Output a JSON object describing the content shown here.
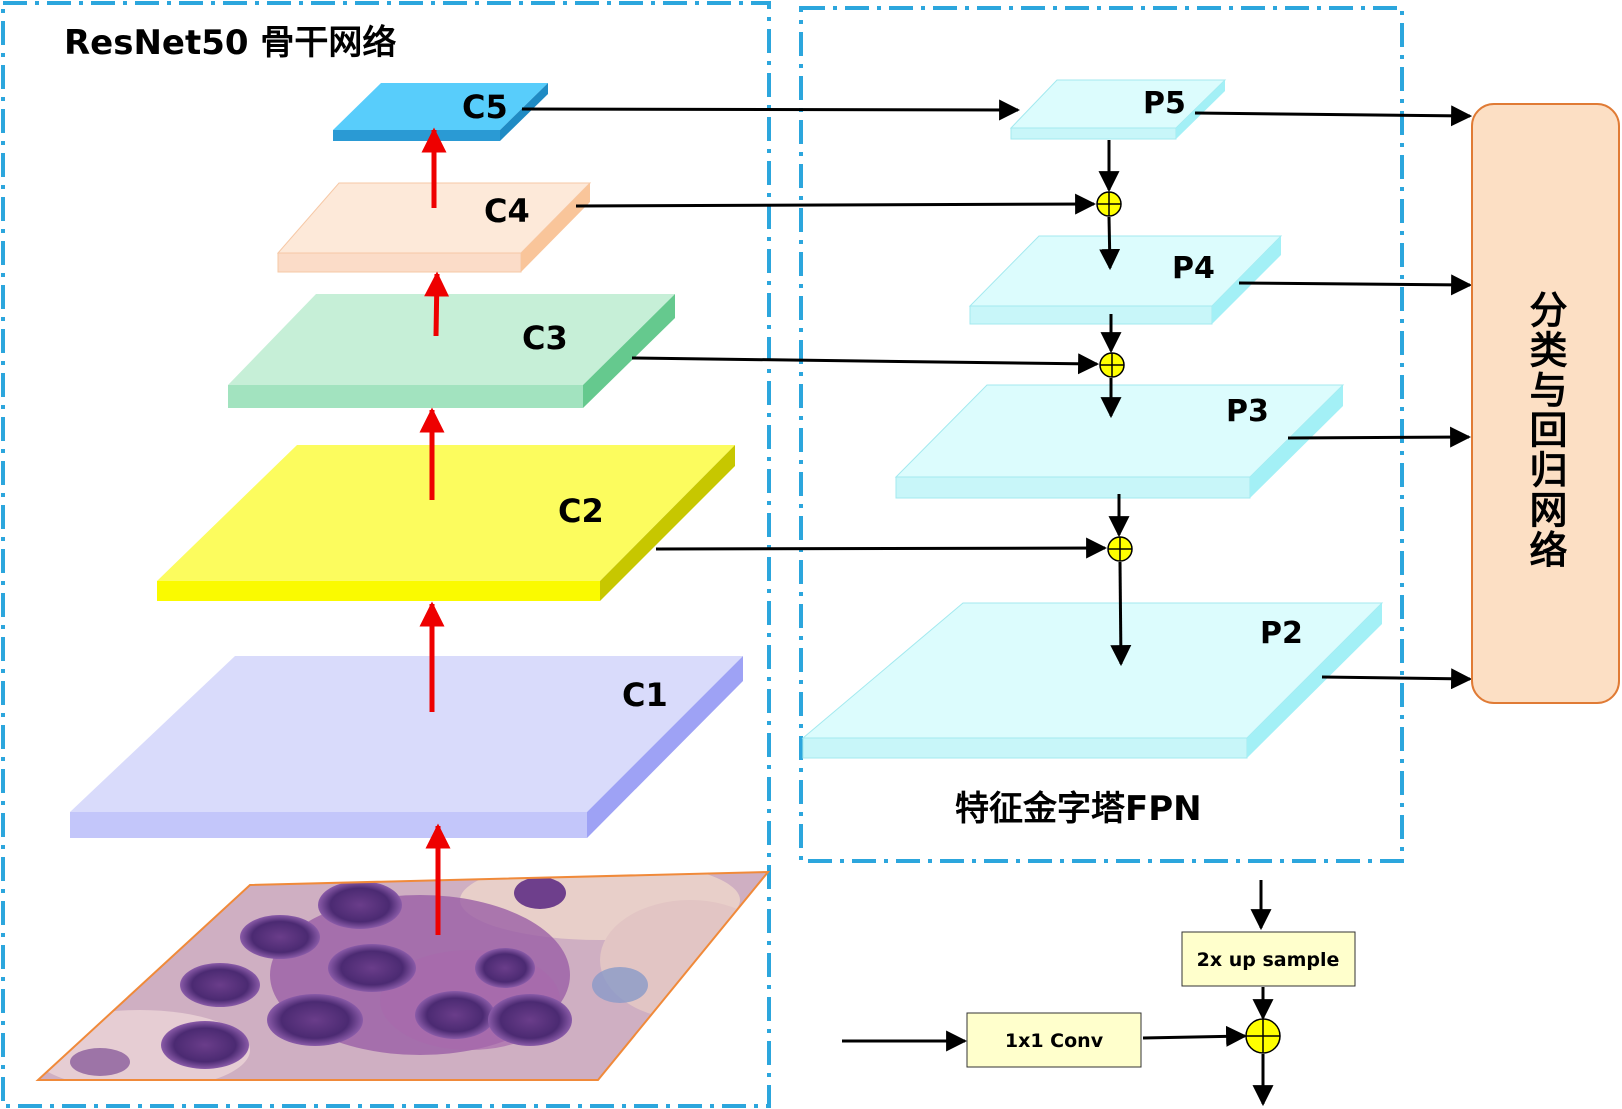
{
  "backbone": {
    "title": "ResNet50 骨干网络",
    "layers": [
      {
        "id": "c5",
        "label": "C5",
        "top": "#58cdfb",
        "front": "#2a9ad4",
        "side": "#1f8bc4"
      },
      {
        "id": "c4",
        "label": "C4",
        "top": "#fde9d9",
        "front": "#fbdcc8",
        "side": "#f9c59a"
      },
      {
        "id": "c3",
        "label": "C3",
        "top": "#c6efd7",
        "front": "#a2e3bf",
        "side": "#65c98e"
      },
      {
        "id": "c2",
        "label": "C2",
        "top": "#fcfc5e",
        "front": "#fafa00",
        "side": "#c7c700"
      },
      {
        "id": "c1",
        "label": "C1",
        "top": "#d9dbfb",
        "front": "#c3c6fa",
        "side": "#9ea2f5"
      }
    ],
    "input_image": "cell-microscopy-image"
  },
  "fpn": {
    "title": "特征金字塔FPN",
    "layers": [
      {
        "id": "p5",
        "label": "P5"
      },
      {
        "id": "p4",
        "label": "P4"
      },
      {
        "id": "p3",
        "label": "P3"
      },
      {
        "id": "p2",
        "label": "P2"
      }
    ],
    "colors": {
      "top": "#dcfcfd",
      "front": "#c8f6f9",
      "side": "#a3f0f6"
    }
  },
  "head": {
    "label": "分类与回归网络",
    "fill": "#fcdfc4",
    "stroke": "#e07b35"
  },
  "legend": {
    "upsample_label": "2x up sample",
    "conv_label": "1x1 Conv",
    "box_fill": "#ffffcc"
  },
  "colors": {
    "dashed_border": "#2ca6dd",
    "arrow_red": "#ee0000",
    "arrow_black": "#000000",
    "add_node": "#ffff00"
  }
}
